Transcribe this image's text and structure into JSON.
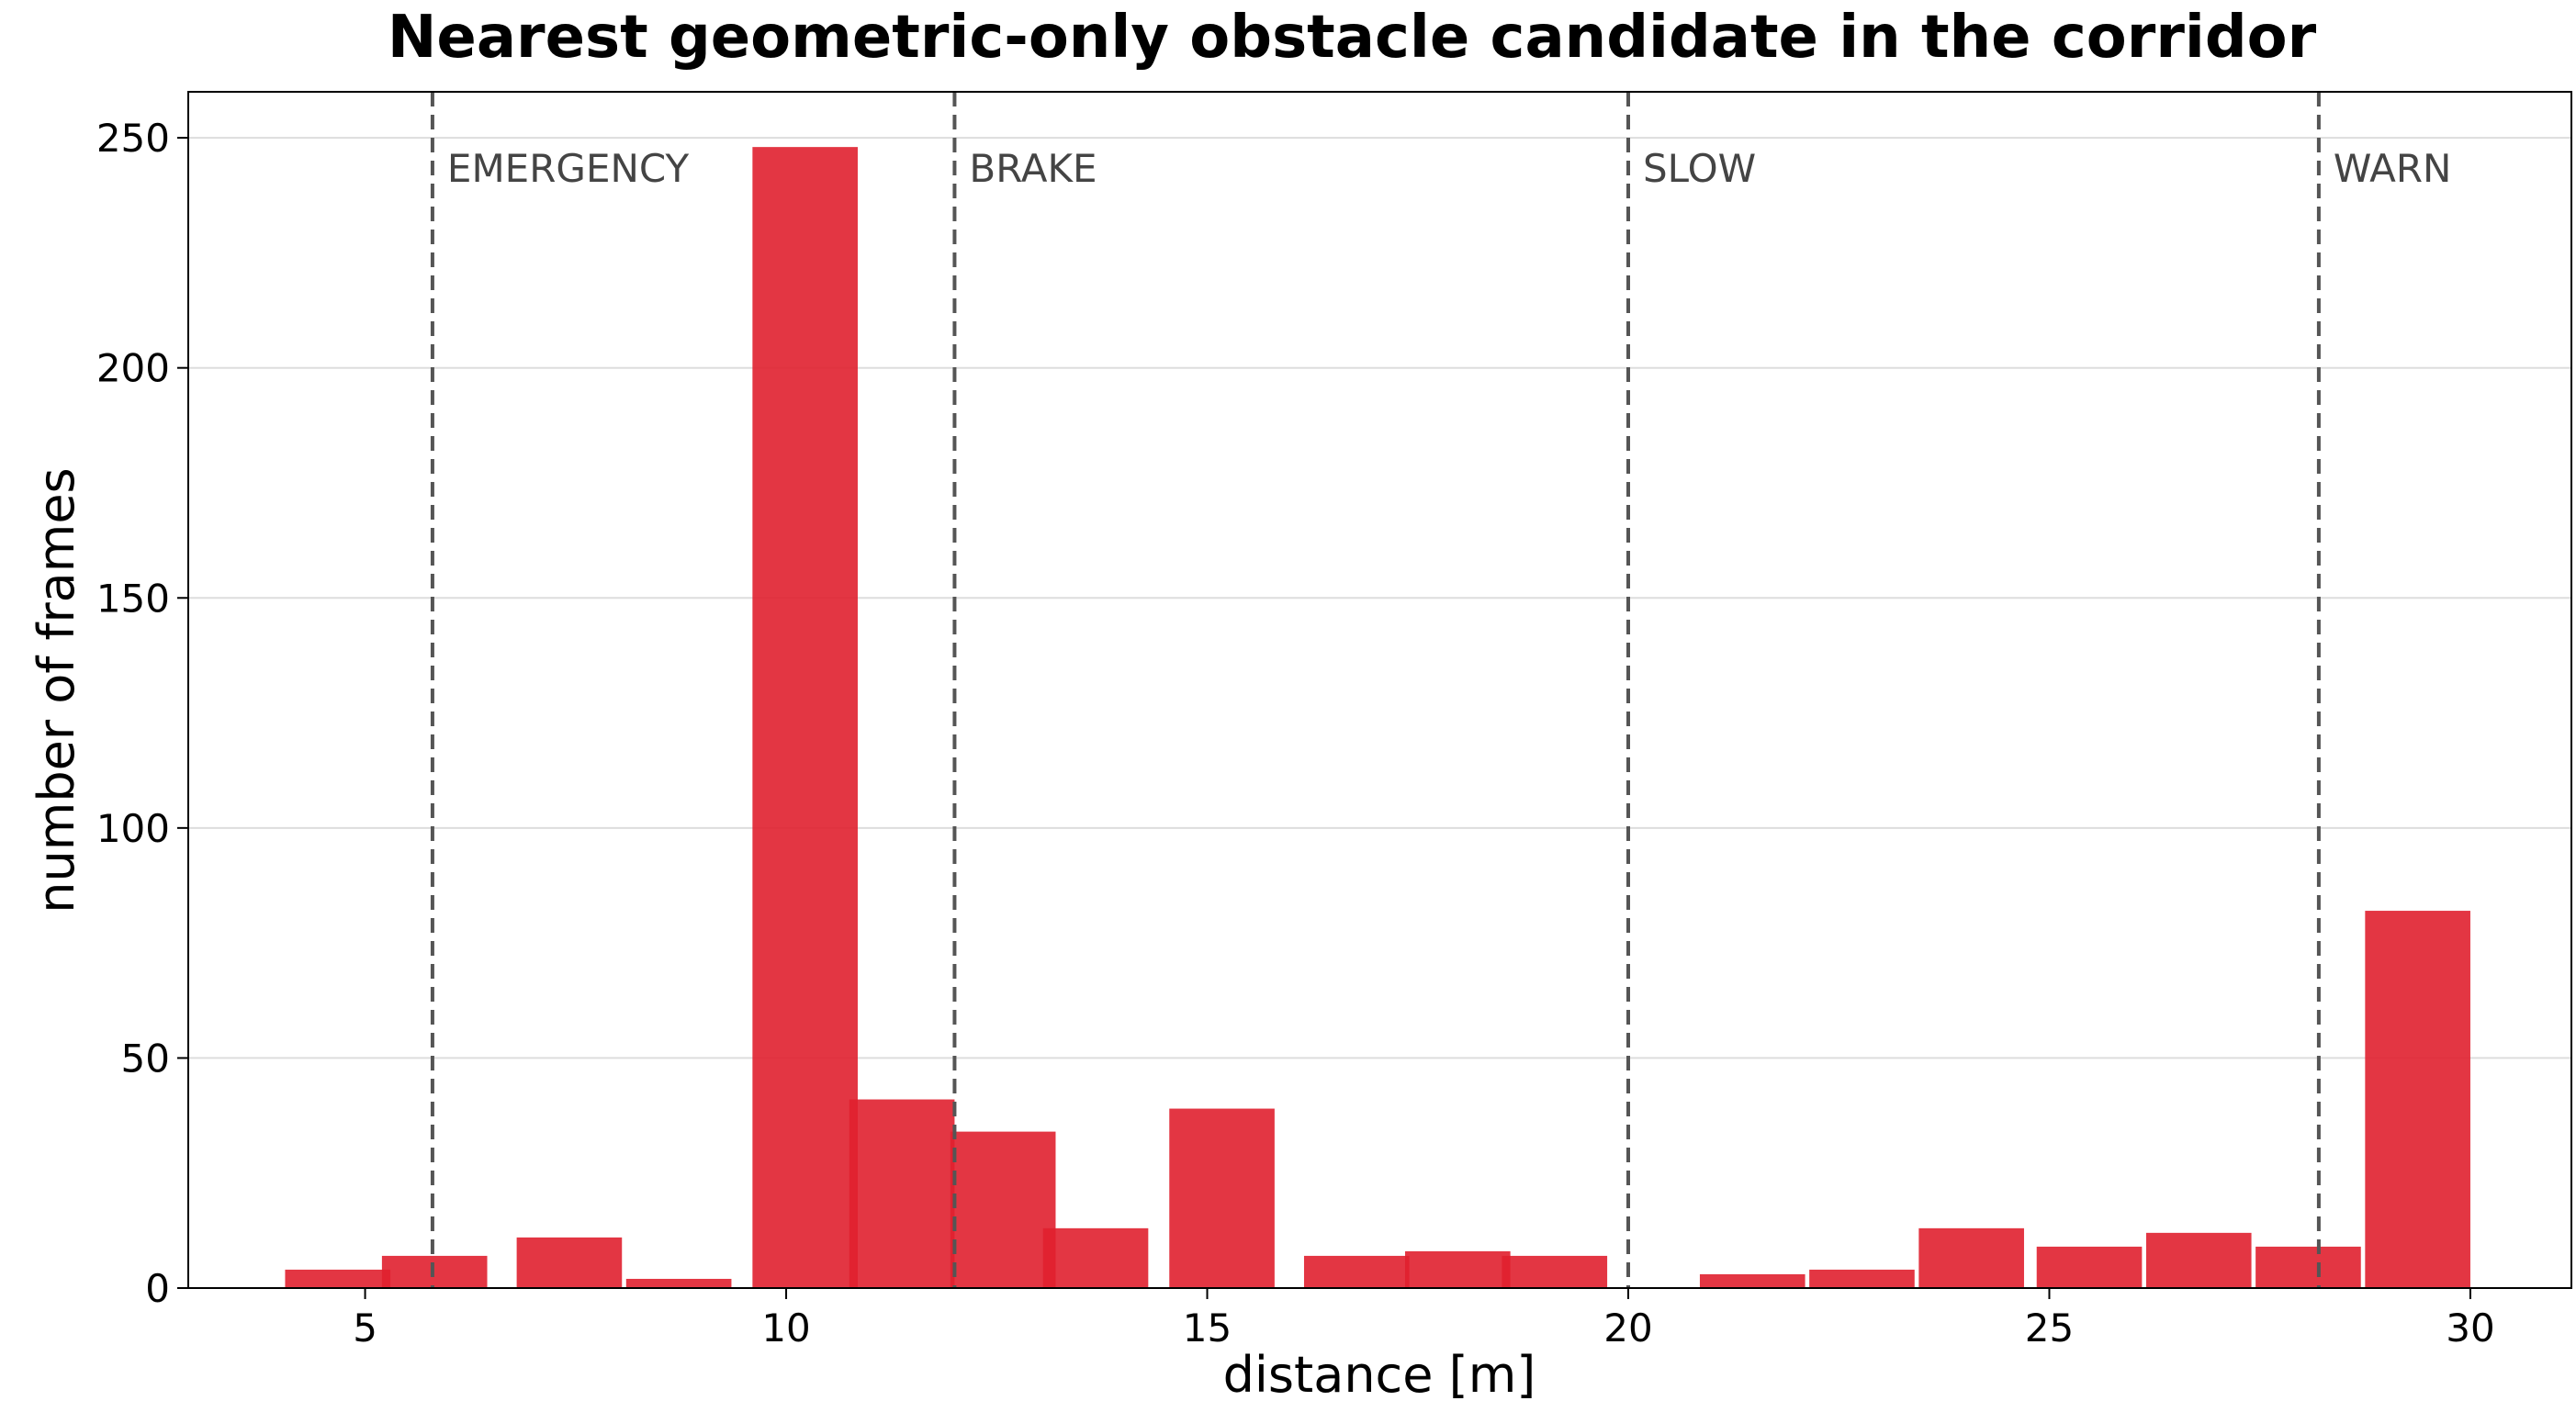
{
  "chart_data": {
    "type": "bar",
    "title": "Nearest geometric-only obstacle candidate in the corridor",
    "xlabel": "distance [m]",
    "ylabel": "number of frames",
    "xlim": [
      2.9,
      31.2
    ],
    "ylim": [
      0,
      260
    ],
    "xticks": [
      5,
      10,
      15,
      20,
      25,
      30
    ],
    "yticks": [
      0,
      50,
      100,
      150,
      200,
      250
    ],
    "grid": "y",
    "bar_color": "#e0202f",
    "bars": [
      {
        "x0": 4.05,
        "x1": 5.3,
        "value": 4
      },
      {
        "x0": 5.2,
        "x1": 6.45,
        "value": 7
      },
      {
        "x0": 6.8,
        "x1": 8.05,
        "value": 11
      },
      {
        "x0": 8.1,
        "x1": 9.35,
        "value": 2
      },
      {
        "x0": 9.6,
        "x1": 10.85,
        "value": 248
      },
      {
        "x0": 10.75,
        "x1": 12.0,
        "value": 41
      },
      {
        "x0": 11.95,
        "x1": 13.2,
        "value": 34
      },
      {
        "x0": 13.05,
        "x1": 14.3,
        "value": 13
      },
      {
        "x0": 14.55,
        "x1": 15.8,
        "value": 39
      },
      {
        "x0": 16.15,
        "x1": 17.4,
        "value": 7
      },
      {
        "x0": 17.35,
        "x1": 18.6,
        "value": 8
      },
      {
        "x0": 18.5,
        "x1": 19.75,
        "value": 7
      },
      {
        "x0": 20.85,
        "x1": 22.1,
        "value": 3
      },
      {
        "x0": 22.15,
        "x1": 23.4,
        "value": 4
      },
      {
        "x0": 23.45,
        "x1": 24.7,
        "value": 13
      },
      {
        "x0": 24.85,
        "x1": 26.1,
        "value": 9
      },
      {
        "x0": 26.15,
        "x1": 27.4,
        "value": 12
      },
      {
        "x0": 27.45,
        "x1": 28.7,
        "value": 9
      },
      {
        "x0": 28.75,
        "x1": 30.0,
        "value": 82
      }
    ],
    "thresholds": [
      {
        "x": 5.8,
        "label": "EMERGENCY"
      },
      {
        "x": 12.0,
        "label": "BRAKE"
      },
      {
        "x": 20.0,
        "label": "SLOW"
      },
      {
        "x": 28.2,
        "label": "WARN"
      }
    ]
  }
}
